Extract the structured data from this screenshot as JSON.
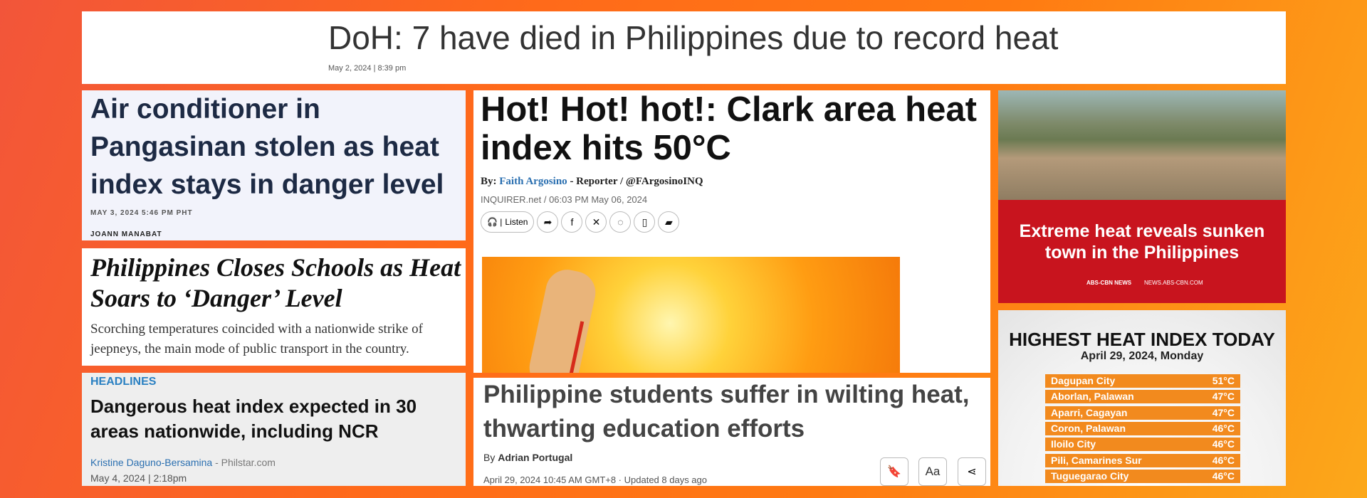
{
  "header": {
    "title": "DoH: 7 have died in Philippines due to record heat",
    "date": "May 2, 2024 | 8:39 pm"
  },
  "story1": {
    "headline": "Air conditioner in Pangasinan stolen as heat index stays in danger level",
    "date": "MAY 3, 2024 5:46 PM PHT",
    "author": "JOANN MANABAT"
  },
  "story2": {
    "headline": "Philippines Closes Schools as Heat Soars to ‘Danger’ Level",
    "summary": "Scorching temperatures coincided with a nationwide strike of jeepneys, the main mode of public transport in the country."
  },
  "story3": {
    "section": "HEADLINES",
    "headline": "Dangerous heat index expected in 30 areas nationwide, including NCR",
    "author": "Kristine Daguno-Bersamina",
    "source": "- Philstar.com",
    "date": "May 4, 2024 | 2:18pm"
  },
  "story4": {
    "headline": "Hot! Hot! hot!: Clark area heat index hits 50°C",
    "by": "By:",
    "author": "Faith Argosino",
    "role": "- Reporter / @FArgosinoINQ",
    "meta": "INQUIRER.net / 06:03 PM May 06, 2024",
    "listen": "Listen"
  },
  "story5": {
    "headline": "Philippine students suffer in wilting heat, thwarting education efforts",
    "by": "By",
    "author": "Adrian Portugal",
    "meta": "April 29, 2024 10:45 AM GMT+8 · Updated 8 days ago",
    "font_button": "Aa"
  },
  "story6": {
    "headline": "Extreme heat reveals sunken town in the Philippines",
    "logo": "ABS-CBN NEWS",
    "site": "NEWS.ABS-CBN.COM"
  },
  "heat_index": {
    "title": "HIGHEST HEAT INDEX TODAY",
    "date": "April 29, 2024, Monday",
    "rows": [
      [
        "Dagupan City",
        "51°C"
      ],
      [
        "Aborlan, Palawan",
        "47°C"
      ],
      [
        "Aparri, Cagayan",
        "47°C"
      ],
      [
        "Coron, Palawan",
        "46°C"
      ],
      [
        "Iloilo City",
        "46°C"
      ],
      [
        "Pili, Camarines Sur",
        "46°C"
      ],
      [
        "Tuguegarao City",
        "46°C"
      ]
    ]
  }
}
